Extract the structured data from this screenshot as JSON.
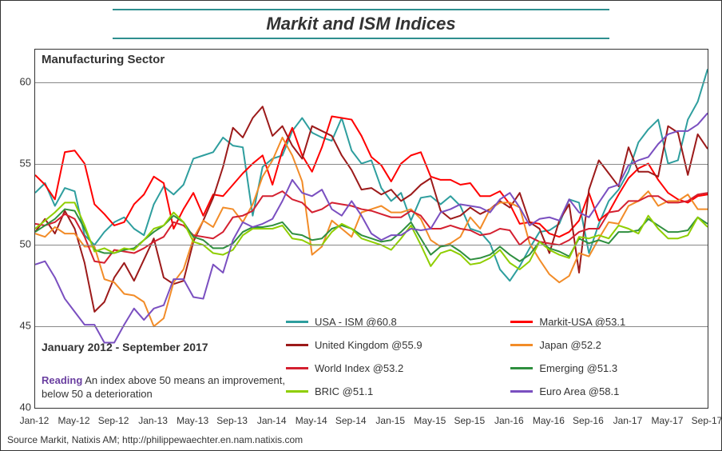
{
  "chart": {
    "type": "line",
    "title": "Markit and ISM Indices",
    "title_fontsize": 22,
    "subtitle": "Manufacturing Sector",
    "subtitle_fontsize": 15,
    "date_range_label": "January 2012 - September 2017",
    "date_range_fontsize": 14,
    "reading_label": "Reading",
    "reading_text": "An index above 50 means an improvement, below 50 a deterioration",
    "reading_fontsize": 13,
    "source": "Source Markit, Natixis AM; http://philippewaechter.en.nam.natixis.com",
    "source_fontsize": 12,
    "background_color": "#ffffff",
    "border_color": "#333333",
    "grid_color": "#888888",
    "title_border_color": "#2e8f8f",
    "text_color": "#333333",
    "reading_label_color": "#6a3fa0",
    "line_width": 2,
    "y": {
      "min": 40,
      "max": 62,
      "tick_step": 5,
      "tick_fontsize": 13
    },
    "x": {
      "min_index": 0,
      "max_index": 68,
      "tick_every": 4,
      "start_year": 2012,
      "start_month": 1,
      "tick_fontsize": 12,
      "labels": [
        "Jan-12",
        "May-12",
        "Sep-12",
        "Jan-13",
        "May-13",
        "Sep-13",
        "Jan-14",
        "May-14",
        "Sep-14",
        "Jan-15",
        "May-15",
        "Sep-15",
        "Jan-16",
        "May-16",
        "Sep-16",
        "Jan-17",
        "May-17",
        "Sep-17"
      ]
    },
    "legend": {
      "fontsize": 13,
      "cols": 2,
      "position": "bottom-right-inside"
    },
    "series": [
      {
        "key": "usa_ism",
        "label": "USA - ISM @60.8",
        "color": "#2e9e9e",
        "values": [
          53.2,
          53.8,
          52.4,
          53.5,
          53.3,
          50.6,
          50.0,
          50.8,
          51.4,
          51.7,
          51.0,
          50.6,
          52.5,
          53.6,
          53.1,
          53.7,
          55.3,
          55.5,
          55.7,
          56.6,
          56.1,
          56.0,
          51.8,
          54.8,
          55.3,
          55.5,
          57.0,
          57.8,
          56.9,
          56.6,
          56.4,
          57.8,
          55.8,
          55.0,
          55.2,
          53.5,
          52.7,
          53.2,
          51.5,
          52.9,
          53.0,
          52.5,
          53.0,
          52.4,
          51.0,
          50.8,
          50.1,
          48.5,
          47.8,
          48.7,
          49.8,
          50.8,
          50.9,
          51.3,
          52.8,
          52.6,
          49.5,
          51.3,
          52.7,
          53.4,
          54.5,
          56.3,
          57.1,
          57.7,
          55.0,
          55.2,
          57.7,
          58.8,
          60.8
        ]
      },
      {
        "key": "markit_usa",
        "label": "Markit-USA @53.1",
        "color": "#ff0000",
        "values": [
          54.3,
          53.7,
          52.8,
          55.7,
          55.8,
          55.0,
          52.5,
          51.9,
          51.2,
          51.4,
          52.5,
          53.1,
          54.2,
          53.8,
          51.0,
          52.2,
          53.2,
          51.8,
          53.1,
          53.0,
          53.7,
          54.4,
          55.0,
          55.5,
          53.7,
          55.8,
          57.2,
          55.5,
          54.5,
          56.0,
          57.9,
          57.8,
          57.7,
          56.7,
          55.4,
          54.9,
          53.9,
          55.0,
          55.5,
          55.7,
          54.2,
          54.0,
          54.0,
          53.7,
          53.8,
          53.0,
          53.0,
          53.3,
          52.5,
          51.3,
          51.4,
          51.3,
          50.7,
          50.5,
          50.8,
          51.5,
          53.2,
          51.5,
          52.0,
          53.1,
          54.1,
          54.7,
          55.0,
          54.0,
          53.2,
          52.8,
          52.6,
          53.0,
          53.1
        ]
      },
      {
        "key": "uk",
        "label": "United Kingdom @55.9",
        "color": "#9c1a1a",
        "values": [
          50.8,
          51.6,
          50.7,
          52.1,
          51.0,
          48.9,
          45.9,
          46.5,
          48.0,
          48.9,
          47.8,
          49.1,
          50.4,
          48.0,
          47.6,
          47.8,
          50.2,
          51.5,
          52.9,
          54.8,
          57.2,
          56.6,
          57.8,
          58.5,
          56.7,
          57.3,
          56.1,
          55.3,
          57.3,
          57.0,
          56.7,
          55.5,
          54.6,
          53.4,
          53.5,
          53.1,
          53.4,
          52.7,
          53.1,
          53.7,
          54.1,
          52.1,
          51.6,
          51.8,
          52.3,
          51.9,
          52.2,
          52.7,
          52.3,
          53.2,
          51.4,
          51.0,
          49.5,
          51.5,
          52.5,
          48.3,
          53.4,
          55.2,
          54.4,
          53.6,
          56.0,
          54.5,
          54.5,
          54.2,
          57.3,
          56.9,
          54.3,
          56.8,
          55.9
        ]
      },
      {
        "key": "japan",
        "label": "Japan @52.2",
        "color": "#f28c28",
        "values": [
          50.7,
          50.5,
          51.1,
          50.7,
          50.7,
          49.9,
          49.9,
          47.9,
          47.7,
          47.0,
          46.9,
          46.5,
          45.0,
          45.5,
          47.7,
          48.5,
          50.4,
          51.5,
          51.1,
          52.3,
          52.2,
          51.4,
          52.5,
          54.2,
          55.2,
          56.6,
          55.5,
          53.9,
          49.4,
          49.9,
          51.5,
          51.0,
          50.5,
          52.0,
          52.2,
          52.4,
          52.0,
          52.0,
          52.2,
          51.6,
          50.3,
          49.9,
          50.1,
          50.5,
          51.7,
          51.0,
          52.2,
          52.6,
          52.6,
          52.3,
          50.1,
          49.1,
          48.2,
          47.7,
          48.1,
          49.5,
          49.3,
          50.4,
          51.4,
          51.3,
          52.4,
          52.7,
          53.3,
          52.4,
          52.7,
          52.7,
          53.1,
          52.2,
          52.2
        ]
      },
      {
        "key": "world",
        "label": "World Index @53.2",
        "color": "#d42030",
        "values": [
          51.3,
          51.2,
          51.4,
          51.9,
          51.6,
          50.5,
          49.0,
          48.9,
          49.7,
          49.6,
          49.5,
          49.8,
          50.2,
          50.5,
          51.4,
          51.2,
          50.6,
          50.5,
          50.4,
          50.8,
          51.7,
          51.8,
          52.1,
          53.0,
          53.0,
          53.3,
          52.8,
          52.6,
          52.0,
          52.2,
          52.6,
          52.5,
          52.4,
          52.2,
          52.1,
          51.9,
          51.7,
          51.7,
          52.1,
          51.8,
          51.0,
          51.0,
          51.2,
          51.0,
          50.9,
          50.6,
          50.7,
          51.0,
          50.9,
          50.0,
          50.5,
          50.2,
          50.1,
          50.0,
          50.3,
          50.8,
          51.0,
          51.0,
          52.0,
          52.1,
          52.7,
          52.7,
          53.0,
          53.0,
          52.6,
          52.6,
          52.7,
          53.1,
          53.2
        ]
      },
      {
        "key": "emerging",
        "label": "Emerging @51.3",
        "color": "#2f8f3f",
        "values": [
          50.8,
          51.2,
          51.6,
          52.2,
          52.1,
          51.0,
          49.7,
          49.5,
          49.5,
          49.7,
          49.8,
          50.3,
          50.8,
          51.2,
          51.8,
          51.4,
          50.5,
          50.3,
          49.8,
          49.8,
          50.1,
          50.8,
          51.1,
          51.1,
          51.2,
          51.4,
          50.7,
          50.6,
          50.3,
          50.4,
          51.0,
          51.2,
          51.0,
          50.6,
          50.4,
          50.2,
          50.3,
          50.8,
          51.4,
          50.4,
          49.4,
          49.9,
          50.0,
          49.6,
          49.1,
          49.2,
          49.4,
          49.9,
          49.4,
          49.0,
          49.4,
          50.2,
          49.8,
          49.6,
          49.3,
          50.4,
          50.1,
          50.3,
          50.1,
          50.8,
          50.8,
          50.9,
          51.6,
          51.2,
          50.8,
          50.8,
          50.9,
          51.7,
          51.3
        ]
      },
      {
        "key": "bric",
        "label": "BRIC @51.1",
        "color": "#8fce00",
        "values": [
          51.0,
          51.5,
          52.0,
          52.6,
          52.6,
          51.2,
          49.6,
          49.8,
          49.5,
          49.8,
          49.7,
          50.3,
          51.0,
          51.2,
          52.0,
          51.4,
          50.2,
          50.0,
          49.5,
          49.4,
          49.7,
          50.6,
          51.0,
          51.0,
          51.0,
          51.2,
          50.4,
          50.3,
          50.0,
          50.0,
          50.8,
          51.3,
          51.0,
          50.4,
          50.2,
          50.0,
          49.7,
          50.4,
          51.2,
          50.0,
          48.7,
          49.5,
          49.7,
          49.4,
          48.8,
          48.9,
          49.2,
          49.7,
          48.9,
          48.5,
          49.0,
          50.2,
          49.7,
          49.4,
          49.2,
          50.5,
          50.4,
          50.6,
          50.4,
          51.2,
          51.0,
          50.7,
          51.8,
          51.0,
          50.4,
          50.4,
          50.6,
          51.7,
          51.1
        ]
      },
      {
        "key": "euro",
        "label": "Euro Area @58.1",
        "color": "#7a4fc0",
        "values": [
          48.8,
          49.0,
          48.0,
          46.7,
          45.9,
          45.1,
          45.1,
          44.0,
          44.0,
          45.1,
          46.1,
          45.4,
          46.1,
          46.3,
          47.9,
          47.9,
          46.8,
          46.7,
          48.8,
          48.3,
          50.3,
          51.4,
          51.1,
          51.3,
          51.6,
          52.7,
          54.0,
          53.2,
          53.0,
          53.4,
          52.2,
          51.8,
          52.7,
          51.8,
          50.7,
          50.3,
          50.6,
          50.6,
          51.0,
          50.9,
          51.0,
          52.0,
          52.2,
          52.5,
          52.4,
          52.3,
          52.0,
          52.8,
          53.2,
          52.3,
          51.2,
          51.6,
          51.7,
          51.5,
          52.8,
          52.0,
          51.7,
          52.6,
          53.5,
          53.7,
          54.9,
          55.2,
          55.4,
          56.2,
          56.8,
          57.0,
          57.0,
          57.4,
          58.1
        ]
      }
    ]
  }
}
